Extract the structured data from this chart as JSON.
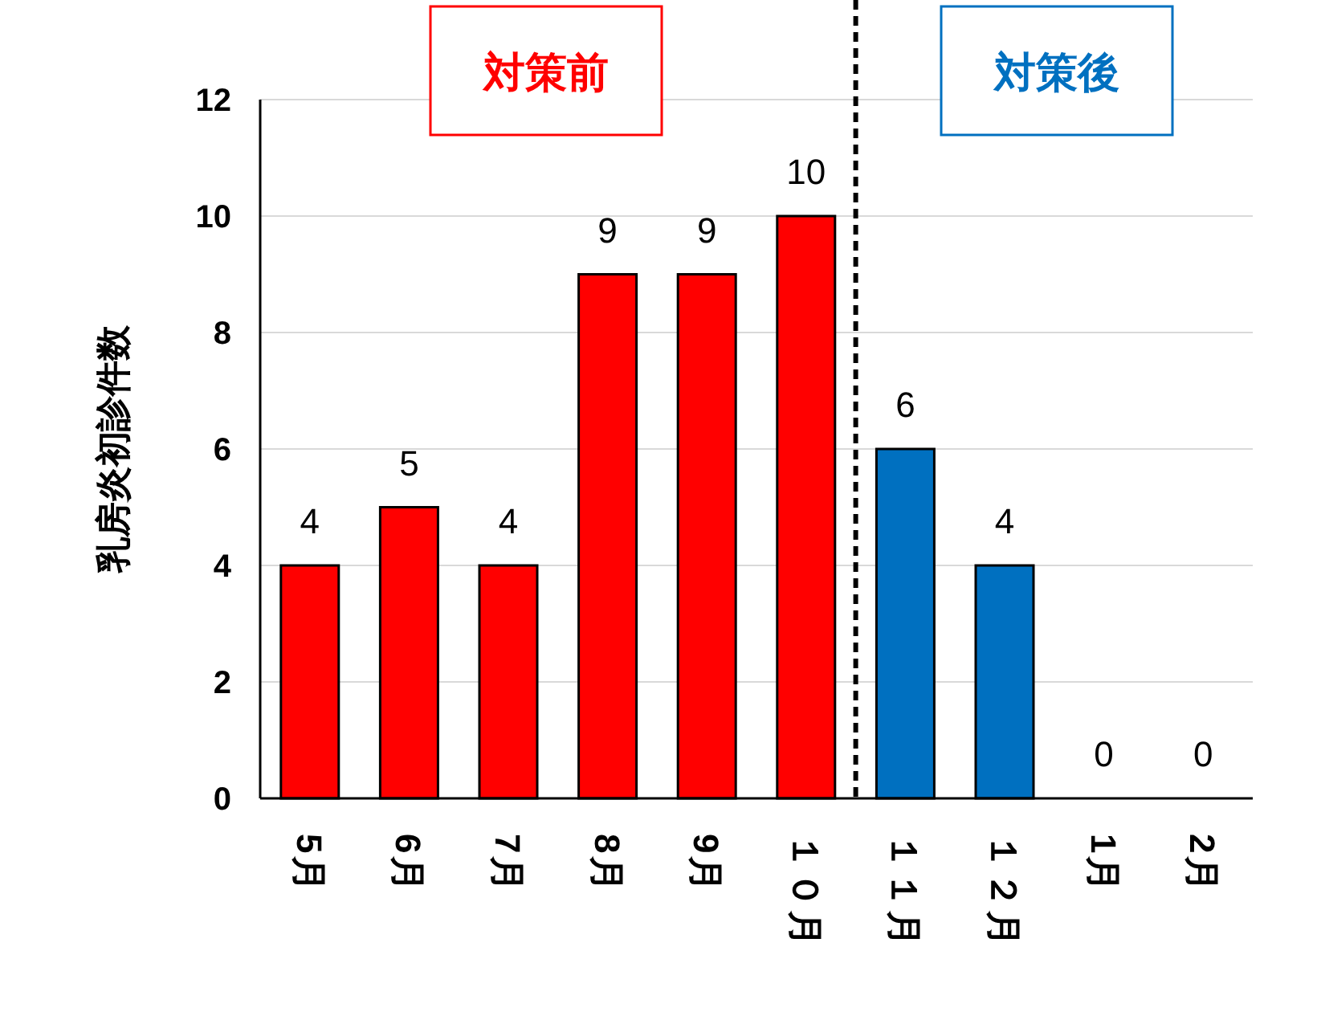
{
  "chart_data": {
    "type": "bar",
    "ylabel": "乳房炎初診件数",
    "categories": [
      "5月",
      "6月",
      "7月",
      "8月",
      "9月",
      "１０月",
      "１１月",
      "１２月",
      "1月",
      "2月"
    ],
    "values": [
      4,
      5,
      4,
      9,
      9,
      10,
      6,
      4,
      0,
      0
    ],
    "colors": [
      "#ff0000",
      "#ff0000",
      "#ff0000",
      "#ff0000",
      "#ff0000",
      "#ff0000",
      "#0070c0",
      "#0070c0",
      "#0070c0",
      "#0070c0"
    ],
    "ylim": [
      0,
      12
    ],
    "yticks": [
      0,
      2,
      4,
      6,
      8,
      10,
      12
    ],
    "grid": "y",
    "data_labels": true,
    "annotations": [
      "対策前",
      "対策後"
    ]
  }
}
